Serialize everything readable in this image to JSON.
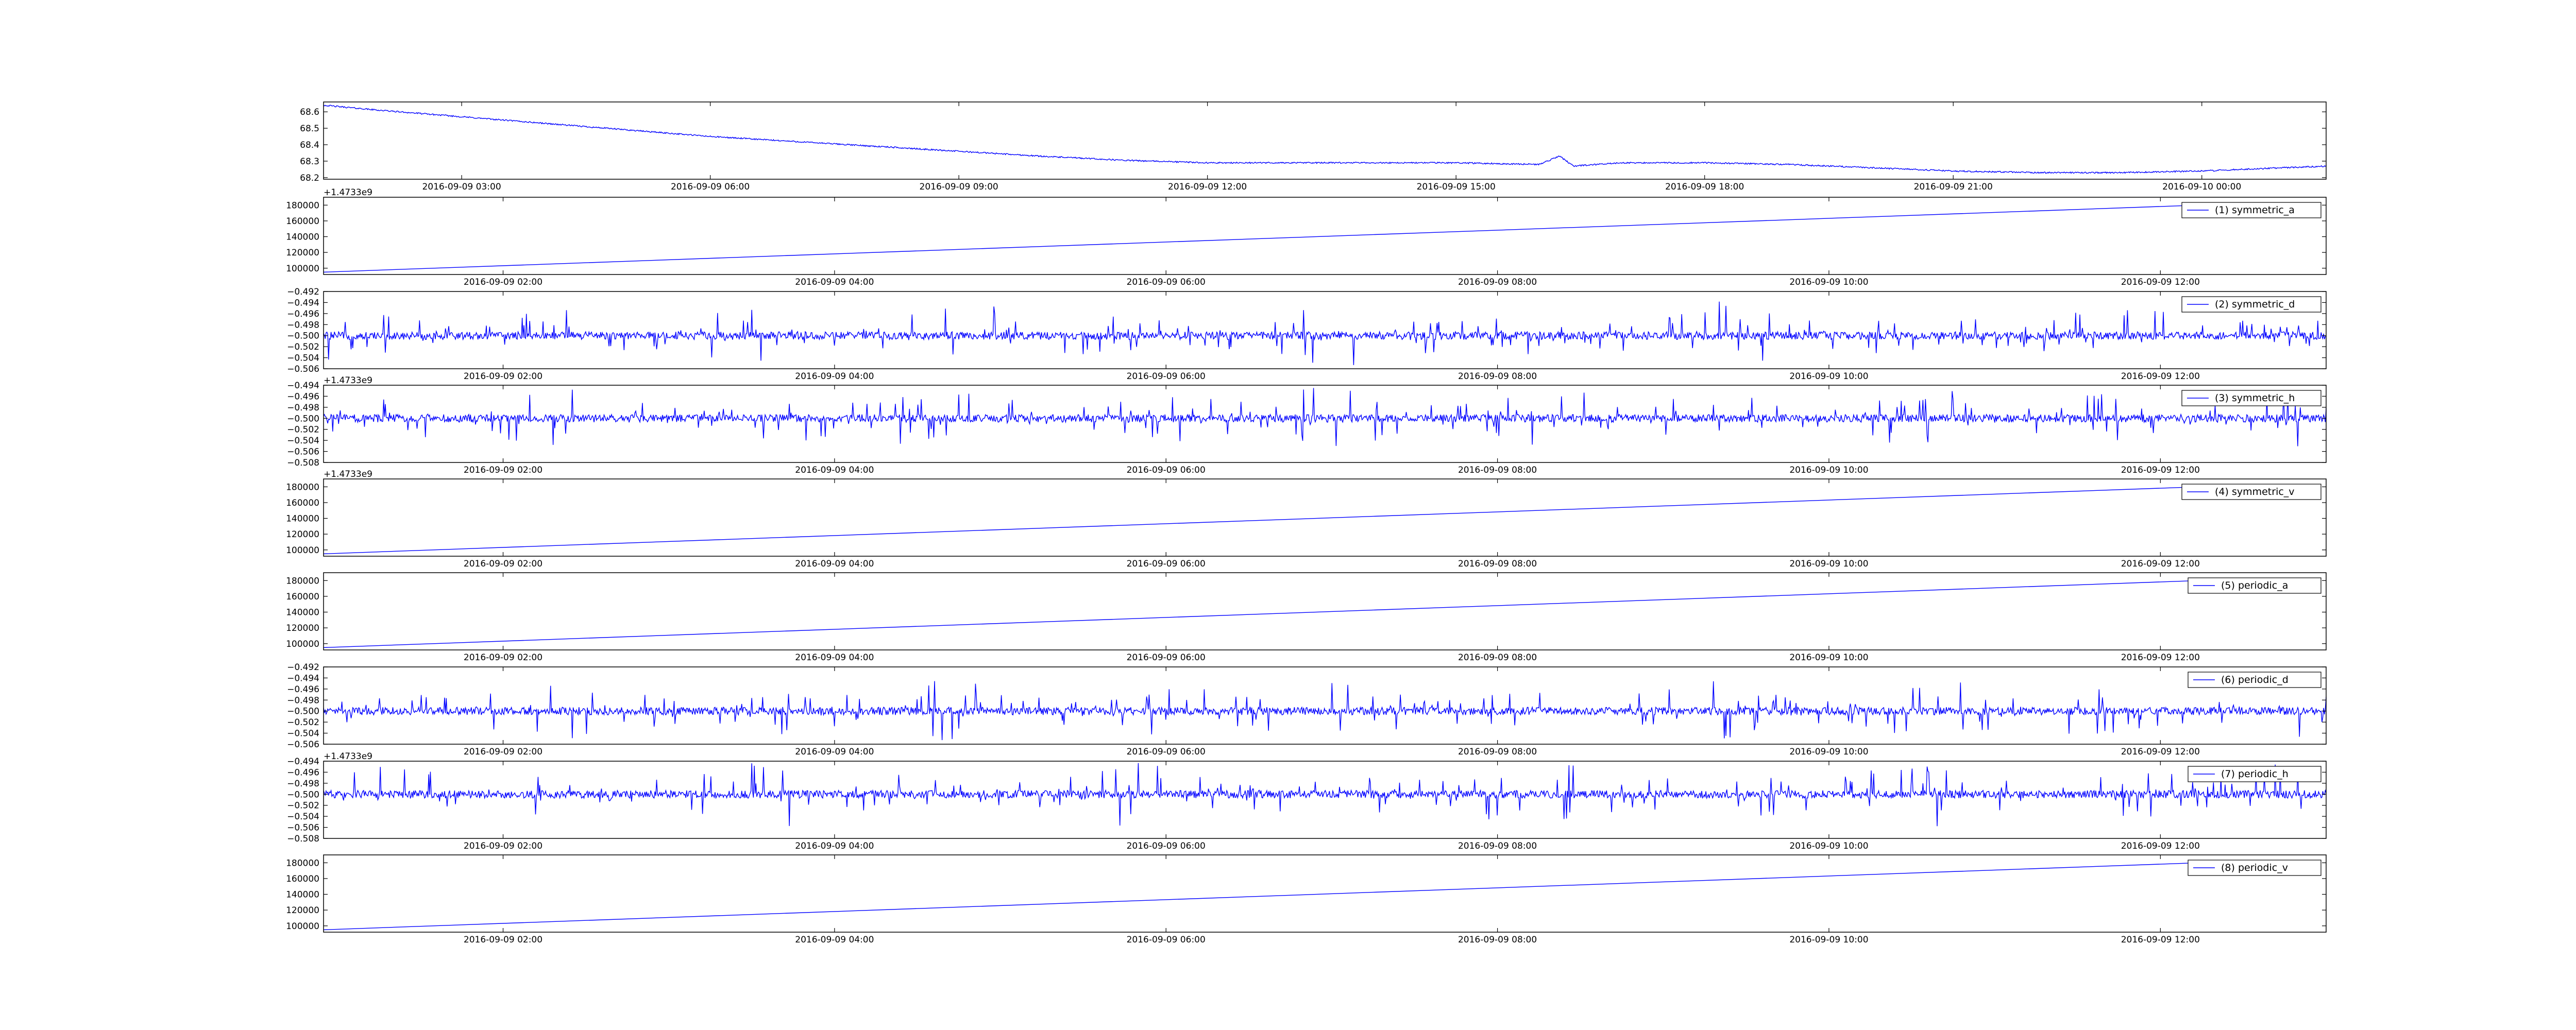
{
  "colors": {
    "line": "#0000ff",
    "axes": "#000000",
    "legend_border": "#000000",
    "background": "#ffffff"
  },
  "chart_data": [
    {
      "type": "line",
      "title": "",
      "xlabel": "",
      "ylabel": "",
      "legend": null,
      "grid": false,
      "offset_text": "",
      "x_ticks": [
        "2016-09-09 03:00",
        "2016-09-09 06:00",
        "2016-09-09 09:00",
        "2016-09-09 12:00",
        "2016-09-09 15:00",
        "2016-09-09 18:00",
        "2016-09-09 21:00",
        "2016-09-10 00:00"
      ],
      "xlim": [
        "2016-09-09 01:20",
        "2016-09-10 01:30"
      ],
      "ylim": [
        68.19,
        68.66
      ],
      "y_ticks": [
        68.2,
        68.3,
        68.4,
        68.5,
        68.6
      ],
      "series": [
        {
          "x": [
            "2016-09-09 01:20",
            "2016-09-09 02:00",
            "2016-09-09 03:00",
            "2016-09-09 04:00",
            "2016-09-09 05:00",
            "2016-09-09 06:00",
            "2016-09-09 07:00",
            "2016-09-09 08:00",
            "2016-09-09 09:00",
            "2016-09-09 10:00",
            "2016-09-09 11:00",
            "2016-09-09 12:00",
            "2016-09-09 13:00",
            "2016-09-09 14:00",
            "2016-09-09 15:00",
            "2016-09-09 16:00",
            "2016-09-09 16:15",
            "2016-09-09 16:25",
            "2016-09-09 17:00",
            "2016-09-09 18:00",
            "2016-09-09 19:00",
            "2016-09-09 20:00",
            "2016-09-09 21:00",
            "2016-09-09 22:00",
            "2016-09-09 23:00",
            "2016-09-10 00:00",
            "2016-09-10 01:30"
          ],
          "values": [
            68.64,
            68.61,
            68.57,
            68.53,
            68.49,
            68.45,
            68.42,
            68.39,
            68.36,
            68.33,
            68.305,
            68.29,
            68.29,
            68.29,
            68.29,
            68.28,
            68.33,
            68.27,
            68.29,
            68.29,
            68.28,
            68.26,
            68.24,
            68.23,
            68.23,
            68.24,
            68.27
          ]
        }
      ]
    },
    {
      "type": "line",
      "title": "",
      "xlabel": "",
      "ylabel": "",
      "grid": false,
      "legend": "(1) symmetric_a",
      "offset_text": "+1.4733e9",
      "x_ticks": [
        "2016-09-09 02:00",
        "2016-09-09 04:00",
        "2016-09-09 06:00",
        "2016-09-09 08:00",
        "2016-09-09 10:00",
        "2016-09-09 12:00"
      ],
      "xlim": [
        "2016-09-09 00:55",
        "2016-09-09 13:00"
      ],
      "ylim": [
        92000,
        190000
      ],
      "y_ticks": [
        100000,
        120000,
        140000,
        160000,
        180000
      ],
      "series": [
        {
          "x": [
            "2016-09-09 00:55",
            "2016-09-09 12:30"
          ],
          "values": [
            95000,
            182000
          ]
        }
      ]
    },
    {
      "type": "line",
      "title": "",
      "xlabel": "",
      "ylabel": "",
      "grid": false,
      "legend": "(2) symmetric_d",
      "offset_text": "",
      "x_ticks": [
        "2016-09-09 02:00",
        "2016-09-09 04:00",
        "2016-09-09 06:00",
        "2016-09-09 08:00",
        "2016-09-09 10:00",
        "2016-09-09 12:00"
      ],
      "xlim": [
        "2016-09-09 00:55",
        "2016-09-09 13:00"
      ],
      "ylim": [
        -0.506,
        -0.492
      ],
      "y_ticks": [
        -0.506,
        -0.504,
        -0.502,
        -0.5,
        -0.498,
        -0.496,
        -0.494,
        -0.492
      ],
      "series": [
        {
          "x": [
            "2016-09-09 00:55",
            "2016-09-09 13:00"
          ],
          "values": [
            -0.5,
            -0.5
          ]
        }
      ]
    },
    {
      "type": "line",
      "title": "",
      "xlabel": "",
      "ylabel": "",
      "grid": false,
      "legend": "(3) symmetric_h",
      "offset_text": "+1.4733e9",
      "x_ticks": [
        "2016-09-09 02:00",
        "2016-09-09 04:00",
        "2016-09-09 06:00",
        "2016-09-09 08:00",
        "2016-09-09 10:00",
        "2016-09-09 12:00"
      ],
      "xlim": [
        "2016-09-09 00:55",
        "2016-09-09 13:00"
      ],
      "ylim": [
        -0.508,
        -0.494
      ],
      "y_ticks": [
        -0.508,
        -0.506,
        -0.504,
        -0.502,
        -0.5,
        -0.498,
        -0.496,
        -0.494
      ],
      "series": [
        {
          "x": [
            "2016-09-09 00:55",
            "2016-09-09 13:00"
          ],
          "values": [
            -0.5,
            -0.5
          ]
        }
      ]
    },
    {
      "type": "line",
      "title": "",
      "xlabel": "",
      "ylabel": "",
      "grid": false,
      "legend": "(4) symmetric_v",
      "offset_text": "+1.4733e9",
      "x_ticks": [
        "2016-09-09 02:00",
        "2016-09-09 04:00",
        "2016-09-09 06:00",
        "2016-09-09 08:00",
        "2016-09-09 10:00",
        "2016-09-09 12:00"
      ],
      "xlim": [
        "2016-09-09 00:55",
        "2016-09-09 13:00"
      ],
      "ylim": [
        92000,
        190000
      ],
      "y_ticks": [
        100000,
        120000,
        140000,
        160000,
        180000
      ],
      "series": [
        {
          "x": [
            "2016-09-09 00:55",
            "2016-09-09 12:30"
          ],
          "values": [
            95000,
            182000
          ]
        }
      ]
    },
    {
      "type": "line",
      "title": "",
      "xlabel": "",
      "ylabel": "",
      "grid": false,
      "legend": "(5) periodic_a",
      "offset_text": "",
      "x_ticks": [
        "2016-09-09 02:00",
        "2016-09-09 04:00",
        "2016-09-09 06:00",
        "2016-09-09 08:00",
        "2016-09-09 10:00",
        "2016-09-09 12:00"
      ],
      "xlim": [
        "2016-09-09 00:55",
        "2016-09-09 13:00"
      ],
      "ylim": [
        92000,
        190000
      ],
      "y_ticks": [
        100000,
        120000,
        140000,
        160000,
        180000
      ],
      "series": [
        {
          "x": [
            "2016-09-09 00:55",
            "2016-09-09 12:30"
          ],
          "values": [
            95000,
            182000
          ]
        }
      ]
    },
    {
      "type": "line",
      "title": "",
      "xlabel": "",
      "ylabel": "",
      "grid": false,
      "legend": "(6) periodic_d",
      "offset_text": "",
      "x_ticks": [
        "2016-09-09 02:00",
        "2016-09-09 04:00",
        "2016-09-09 06:00",
        "2016-09-09 08:00",
        "2016-09-09 10:00",
        "2016-09-09 12:00"
      ],
      "xlim": [
        "2016-09-09 00:55",
        "2016-09-09 13:00"
      ],
      "ylim": [
        -0.506,
        -0.492
      ],
      "y_ticks": [
        -0.506,
        -0.504,
        -0.502,
        -0.5,
        -0.498,
        -0.496,
        -0.494,
        -0.492
      ],
      "series": [
        {
          "x": [
            "2016-09-09 00:55",
            "2016-09-09 13:00"
          ],
          "values": [
            -0.5,
            -0.5
          ]
        }
      ]
    },
    {
      "type": "line",
      "title": "",
      "xlabel": "",
      "ylabel": "",
      "grid": false,
      "legend": "(7) periodic_h",
      "offset_text": "+1.4733e9",
      "x_ticks": [
        "2016-09-09 02:00",
        "2016-09-09 04:00",
        "2016-09-09 06:00",
        "2016-09-09 08:00",
        "2016-09-09 10:00",
        "2016-09-09 12:00"
      ],
      "xlim": [
        "2016-09-09 00:55",
        "2016-09-09 13:00"
      ],
      "ylim": [
        -0.508,
        -0.494
      ],
      "y_ticks": [
        -0.508,
        -0.506,
        -0.504,
        -0.502,
        -0.5,
        -0.498,
        -0.496,
        -0.494
      ],
      "series": [
        {
          "x": [
            "2016-09-09 00:55",
            "2016-09-09 13:00"
          ],
          "values": [
            -0.5,
            -0.5
          ]
        }
      ]
    },
    {
      "type": "line",
      "title": "",
      "xlabel": "",
      "ylabel": "",
      "grid": false,
      "legend": "(8) periodic_v",
      "offset_text": "",
      "x_ticks": [
        "2016-09-09 02:00",
        "2016-09-09 04:00",
        "2016-09-09 06:00",
        "2016-09-09 08:00",
        "2016-09-09 10:00",
        "2016-09-09 12:00"
      ],
      "xlim": [
        "2016-09-09 00:55",
        "2016-09-09 13:00"
      ],
      "ylim": [
        92000,
        190000
      ],
      "y_ticks": [
        100000,
        120000,
        140000,
        160000,
        180000
      ],
      "series": [
        {
          "x": [
            "2016-09-09 00:55",
            "2016-09-09 12:30"
          ],
          "values": [
            95000,
            182000
          ]
        }
      ]
    }
  ]
}
